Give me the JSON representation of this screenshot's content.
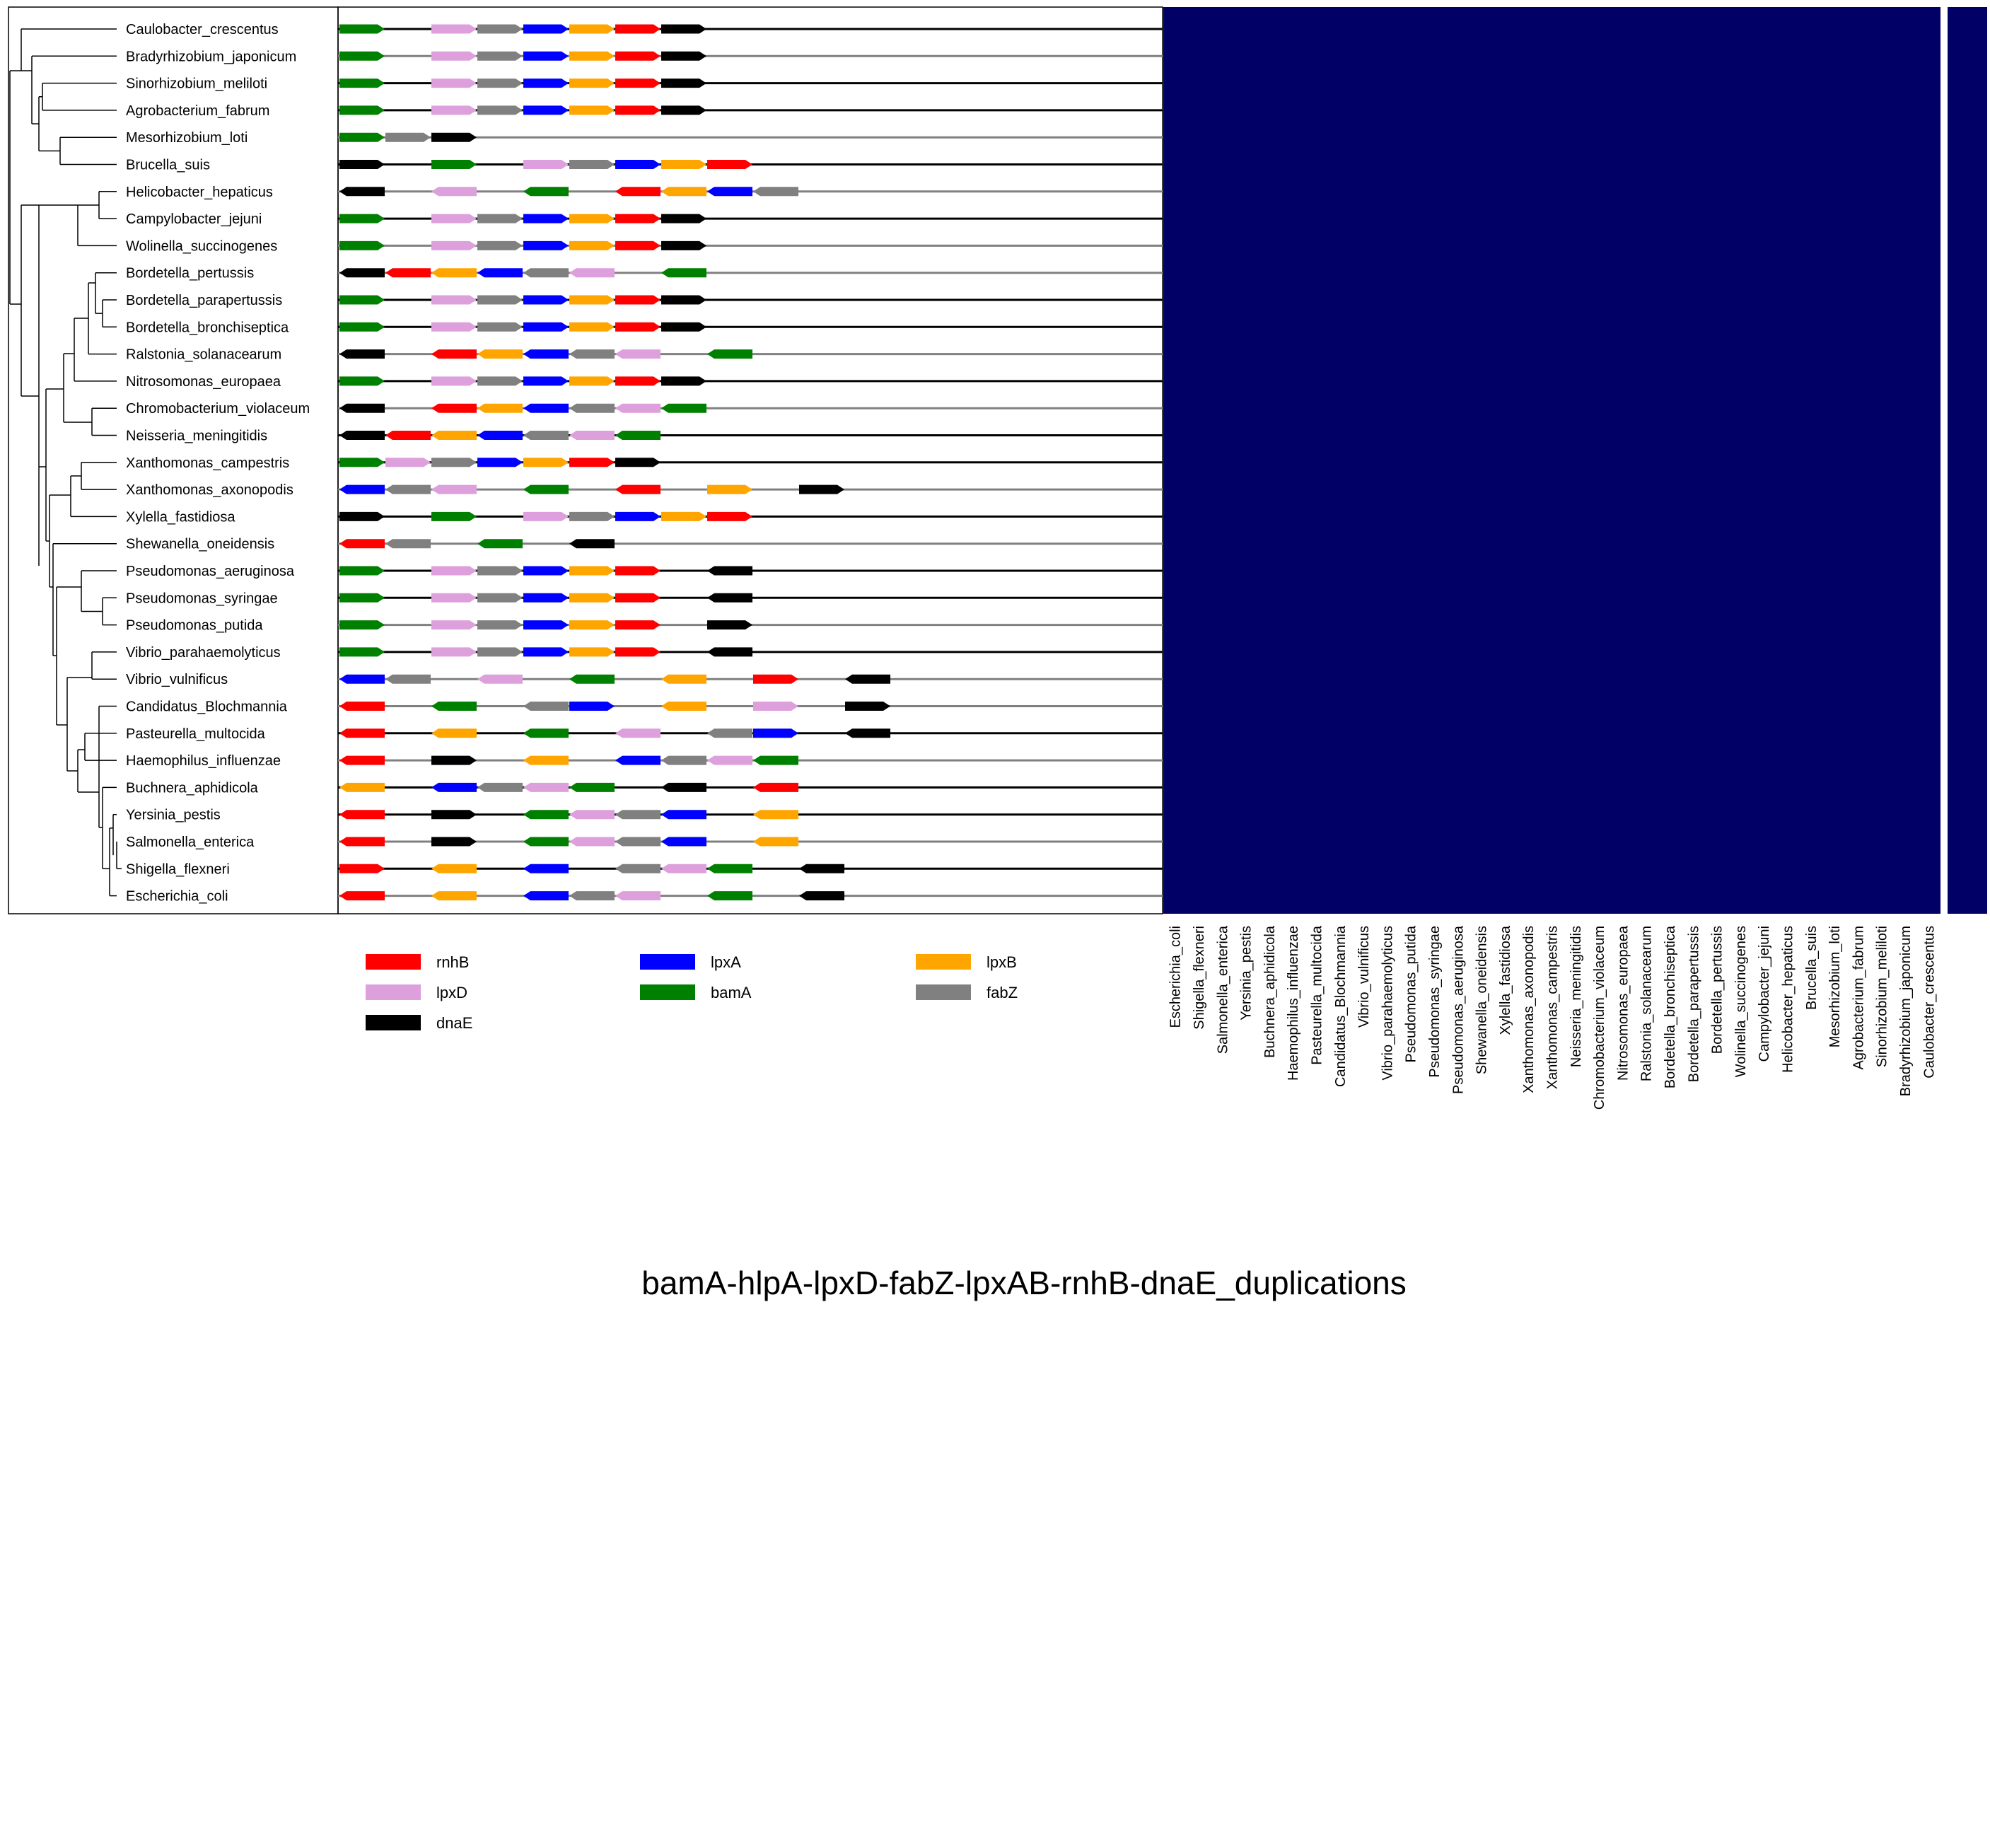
{
  "title": "bamA-hlpA-lpxD-fabZ-lpxAB-rnhB-dnaE_duplications",
  "colors": {
    "rnhB": "#ff0000",
    "lpxD": "#dda0dd",
    "dnaE": "#000000",
    "lpxA": "#0000ff",
    "bamA": "#008000",
    "lpxB": "#ffa500",
    "fabZ": "#808080",
    "heatmap": "#000066",
    "line_dark": "#000000",
    "line_grey": "#808080"
  },
  "legend": [
    {
      "gene": "rnhB",
      "label": "rnhB"
    },
    {
      "gene": "lpxA",
      "label": "lpxA"
    },
    {
      "gene": "lpxB",
      "label": "lpxB"
    },
    {
      "gene": "lpxD",
      "label": "lpxD"
    },
    {
      "gene": "bamA",
      "label": "bamA"
    },
    {
      "gene": "fabZ",
      "label": "fabZ"
    },
    {
      "gene": "dnaE",
      "label": "dnaE"
    }
  ],
  "species": [
    "Caulobacter_crescentus",
    "Bradyrhizobium_japonicum",
    "Sinorhizobium_meliloti",
    "Agrobacterium_fabrum",
    "Mesorhizobium_loti",
    "Brucella_suis",
    "Helicobacter_hepaticus",
    "Campylobacter_jejuni",
    "Wolinella_succinogenes",
    "Bordetella_pertussis",
    "Bordetella_parapertussis",
    "Bordetella_bronchiseptica",
    "Ralstonia_solanacearum",
    "Nitrosomonas_europaea",
    "Chromobacterium_violaceum",
    "Neisseria_meningitidis",
    "Xanthomonas_campestris",
    "Xanthomonas_axonopodis",
    "Xylella_fastidiosa",
    "Shewanella_oneidensis",
    "Pseudomonas_aeruginosa",
    "Pseudomonas_syringae",
    "Pseudomonas_putida",
    "Vibrio_parahaemolyticus",
    "Vibrio_vulnificus",
    "Candidatus_Blochmannia",
    "Pasteurella_multocida",
    "Haemophilus_influenzae",
    "Buchnera_aphidicola",
    "Yersinia_pestis",
    "Salmonella_enterica",
    "Shigella_flexneri",
    "Escherichia_coli"
  ],
  "heatmap_columns": [
    "Escherichia_coli",
    "Shigella_flexneri",
    "Salmonella_enterica",
    "Yersinia_pestis",
    "Buchnera_aphidicola",
    "Haemophilus_influenzae",
    "Pasteurella_multocida",
    "Candidatus_Blochmannia",
    "Vibrio_vulnificus",
    "Vibrio_parahaemolyticus",
    "Pseudomonas_putida",
    "Pseudomonas_syringae",
    "Pseudomonas_aeruginosa",
    "Shewanella_oneidensis",
    "Xylella_fastidiosa",
    "Xanthomonas_axonopodis",
    "Xanthomonas_campestris",
    "Neisseria_meningitidis",
    "Chromobacterium_violaceum",
    "Nitrosomonas_europaea",
    "Ralstonia_solanacearum",
    "Bordetella_bronchiseptica",
    "Bordetella_parapertussis",
    "Bordetella_pertussis",
    "Wolinella_succinogenes",
    "Campylobacter_jejuni",
    "Helicobacter_hepaticus",
    "Brucella_suis",
    "Mesorhizobium_loti",
    "Agrobacterium_fabrum",
    "Sinorhizobium_meliloti",
    "Bradyrhizobium_japonicum",
    "Caulobacter_crescentus"
  ],
  "tracks": [
    {
      "line": "dark",
      "genes": [
        [
          "bamA",
          0,
          1
        ],
        [
          "lpxD",
          2,
          1
        ],
        [
          "fabZ",
          3,
          1
        ],
        [
          "lpxA",
          4,
          1
        ],
        [
          "lpxB",
          5,
          1
        ],
        [
          "rnhB",
          6,
          1
        ],
        [
          "dnaE",
          7,
          1
        ]
      ]
    },
    {
      "line": "grey",
      "genes": [
        [
          "bamA",
          0,
          1
        ],
        [
          "lpxD",
          2,
          1
        ],
        [
          "fabZ",
          3,
          1
        ],
        [
          "lpxA",
          4,
          1
        ],
        [
          "lpxB",
          5,
          1
        ],
        [
          "rnhB",
          6,
          1
        ],
        [
          "dnaE",
          7,
          1
        ]
      ]
    },
    {
      "line": "dark",
      "genes": [
        [
          "bamA",
          0,
          1
        ],
        [
          "lpxD",
          2,
          1
        ],
        [
          "fabZ",
          3,
          1
        ],
        [
          "lpxA",
          4,
          1
        ],
        [
          "lpxB",
          5,
          1
        ],
        [
          "rnhB",
          6,
          1
        ],
        [
          "dnaE",
          7,
          1
        ]
      ]
    },
    {
      "line": "dark",
      "genes": [
        [
          "bamA",
          0,
          1
        ],
        [
          "lpxD",
          2,
          1
        ],
        [
          "fabZ",
          3,
          1
        ],
        [
          "lpxA",
          4,
          1
        ],
        [
          "lpxB",
          5,
          1
        ],
        [
          "rnhB",
          6,
          1
        ],
        [
          "dnaE",
          7,
          1
        ]
      ]
    },
    {
      "line": "grey",
      "genes": [
        [
          "bamA",
          0,
          1
        ],
        [
          "fabZ",
          1,
          1
        ],
        [
          "dnaE",
          2,
          1
        ]
      ]
    },
    {
      "line": "dark",
      "genes": [
        [
          "dnaE",
          0,
          1
        ],
        [
          "bamA",
          2,
          1
        ],
        [
          "lpxD",
          4,
          1
        ],
        [
          "fabZ",
          5,
          1
        ],
        [
          "lpxA",
          6,
          1
        ],
        [
          "lpxB",
          7,
          1
        ],
        [
          "rnhB",
          8,
          1
        ]
      ]
    },
    {
      "line": "grey",
      "genes": [
        [
          "dnaE",
          0,
          -1
        ],
        [
          "lpxD",
          2,
          -1
        ],
        [
          "bamA",
          4,
          -1
        ],
        [
          "rnhB",
          6,
          -1
        ],
        [
          "lpxB",
          7,
          -1
        ],
        [
          "lpxA",
          8,
          -1
        ],
        [
          "fabZ",
          9,
          -1
        ]
      ]
    },
    {
      "line": "dark",
      "genes": [
        [
          "bamA",
          0,
          1
        ],
        [
          "lpxD",
          2,
          1
        ],
        [
          "fabZ",
          3,
          1
        ],
        [
          "lpxA",
          4,
          1
        ],
        [
          "lpxB",
          5,
          1
        ],
        [
          "rnhB",
          6,
          1
        ],
        [
          "dnaE",
          7,
          1
        ]
      ]
    },
    {
      "line": "grey",
      "genes": [
        [
          "bamA",
          0,
          1
        ],
        [
          "lpxD",
          2,
          1
        ],
        [
          "fabZ",
          3,
          1
        ],
        [
          "lpxA",
          4,
          1
        ],
        [
          "lpxB",
          5,
          1
        ],
        [
          "rnhB",
          6,
          1
        ],
        [
          "dnaE",
          7,
          1
        ]
      ]
    },
    {
      "line": "grey",
      "genes": [
        [
          "dnaE",
          0,
          -1
        ],
        [
          "rnhB",
          1,
          -1
        ],
        [
          "lpxB",
          2,
          -1
        ],
        [
          "lpxA",
          3,
          -1
        ],
        [
          "fabZ",
          4,
          -1
        ],
        [
          "lpxD",
          5,
          -1
        ],
        [
          "bamA",
          7,
          -1
        ]
      ]
    },
    {
      "line": "dark",
      "genes": [
        [
          "bamA",
          0,
          1
        ],
        [
          "lpxD",
          2,
          1
        ],
        [
          "fabZ",
          3,
          1
        ],
        [
          "lpxA",
          4,
          1
        ],
        [
          "lpxB",
          5,
          1
        ],
        [
          "rnhB",
          6,
          1
        ],
        [
          "dnaE",
          7,
          1
        ]
      ]
    },
    {
      "line": "dark",
      "genes": [
        [
          "bamA",
          0,
          1
        ],
        [
          "lpxD",
          2,
          1
        ],
        [
          "fabZ",
          3,
          1
        ],
        [
          "lpxA",
          4,
          1
        ],
        [
          "lpxB",
          5,
          1
        ],
        [
          "rnhB",
          6,
          1
        ],
        [
          "dnaE",
          7,
          1
        ]
      ]
    },
    {
      "line": "grey",
      "genes": [
        [
          "dnaE",
          0,
          -1
        ],
        [
          "rnhB",
          2,
          -1
        ],
        [
          "lpxB",
          3,
          -1
        ],
        [
          "lpxA",
          4,
          -1
        ],
        [
          "fabZ",
          5,
          -1
        ],
        [
          "lpxD",
          6,
          -1
        ],
        [
          "bamA",
          8,
          -1
        ]
      ]
    },
    {
      "line": "dark",
      "genes": [
        [
          "bamA",
          0,
          1
        ],
        [
          "lpxD",
          2,
          1
        ],
        [
          "fabZ",
          3,
          1
        ],
        [
          "lpxA",
          4,
          1
        ],
        [
          "lpxB",
          5,
          1
        ],
        [
          "rnhB",
          6,
          1
        ],
        [
          "dnaE",
          7,
          1
        ]
      ]
    },
    {
      "line": "grey",
      "genes": [
        [
          "dnaE",
          0,
          -1
        ],
        [
          "rnhB",
          2,
          -1
        ],
        [
          "lpxB",
          3,
          -1
        ],
        [
          "lpxA",
          4,
          -1
        ],
        [
          "fabZ",
          5,
          -1
        ],
        [
          "lpxD",
          6,
          -1
        ],
        [
          "bamA",
          7,
          -1
        ]
      ]
    },
    {
      "line": "dark",
      "genes": [
        [
          "dnaE",
          0,
          -1
        ],
        [
          "rnhB",
          1,
          -1
        ],
        [
          "lpxB",
          2,
          -1
        ],
        [
          "lpxA",
          3,
          -1
        ],
        [
          "fabZ",
          4,
          -1
        ],
        [
          "lpxD",
          5,
          -1
        ],
        [
          "bamA",
          6,
          -1
        ]
      ]
    },
    {
      "line": "dark",
      "genes": [
        [
          "bamA",
          0,
          1
        ],
        [
          "lpxD",
          1,
          1
        ],
        [
          "fabZ",
          2,
          1
        ],
        [
          "lpxA",
          3,
          1
        ],
        [
          "lpxB",
          4,
          1
        ],
        [
          "rnhB",
          5,
          1
        ],
        [
          "dnaE",
          6,
          1
        ]
      ]
    },
    {
      "line": "grey",
      "genes": [
        [
          "lpxA",
          0,
          -1
        ],
        [
          "fabZ",
          1,
          -1
        ],
        [
          "lpxD",
          2,
          -1
        ],
        [
          "bamA",
          4,
          -1
        ],
        [
          "rnhB",
          6,
          -1
        ],
        [
          "lpxB",
          8,
          1
        ],
        [
          "dnaE",
          10,
          1
        ]
      ]
    },
    {
      "line": "dark",
      "genes": [
        [
          "dnaE",
          0,
          1
        ],
        [
          "bamA",
          2,
          1
        ],
        [
          "lpxD",
          4,
          1
        ],
        [
          "fabZ",
          5,
          1
        ],
        [
          "lpxA",
          6,
          1
        ],
        [
          "lpxB",
          7,
          1
        ],
        [
          "rnhB",
          8,
          1
        ]
      ]
    },
    {
      "line": "grey",
      "genes": [
        [
          "rnhB",
          0,
          -1
        ],
        [
          "fabZ",
          1,
          -1
        ],
        [
          "bamA",
          3,
          -1
        ],
        [
          "dnaE",
          5,
          -1
        ]
      ]
    },
    {
      "line": "dark",
      "genes": [
        [
          "bamA",
          0,
          1
        ],
        [
          "lpxD",
          2,
          1
        ],
        [
          "fabZ",
          3,
          1
        ],
        [
          "lpxA",
          4,
          1
        ],
        [
          "lpxB",
          5,
          1
        ],
        [
          "rnhB",
          6,
          1
        ],
        [
          "dnaE",
          8,
          -1
        ]
      ]
    },
    {
      "line": "dark",
      "genes": [
        [
          "bamA",
          0,
          1
        ],
        [
          "lpxD",
          2,
          1
        ],
        [
          "fabZ",
          3,
          1
        ],
        [
          "lpxA",
          4,
          1
        ],
        [
          "lpxB",
          5,
          1
        ],
        [
          "rnhB",
          6,
          1
        ],
        [
          "dnaE",
          8,
          -1
        ]
      ]
    },
    {
      "line": "grey",
      "genes": [
        [
          "bamA",
          0,
          1
        ],
        [
          "lpxD",
          2,
          1
        ],
        [
          "fabZ",
          3,
          1
        ],
        [
          "lpxA",
          4,
          1
        ],
        [
          "lpxB",
          5,
          1
        ],
        [
          "rnhB",
          6,
          1
        ],
        [
          "dnaE",
          8,
          1
        ]
      ]
    },
    {
      "line": "dark",
      "genes": [
        [
          "bamA",
          0,
          1
        ],
        [
          "lpxD",
          2,
          1
        ],
        [
          "fabZ",
          3,
          1
        ],
        [
          "lpxA",
          4,
          1
        ],
        [
          "lpxB",
          5,
          1
        ],
        [
          "rnhB",
          6,
          1
        ],
        [
          "dnaE",
          8,
          -1
        ]
      ]
    },
    {
      "line": "grey",
      "genes": [
        [
          "lpxA",
          0,
          -1
        ],
        [
          "fabZ",
          1,
          -1
        ],
        [
          "lpxD",
          3,
          -1
        ],
        [
          "bamA",
          5,
          -1
        ],
        [
          "lpxB",
          7,
          -1
        ],
        [
          "rnhB",
          9,
          1
        ],
        [
          "dnaE",
          11,
          -1
        ]
      ]
    },
    {
      "line": "grey",
      "genes": [
        [
          "rnhB",
          0,
          -1
        ],
        [
          "bamA",
          2,
          -1
        ],
        [
          "fabZ",
          4,
          -1
        ],
        [
          "lpxA",
          5,
          1
        ],
        [
          "lpxB",
          7,
          -1
        ],
        [
          "lpxD",
          9,
          1
        ],
        [
          "dnaE",
          11,
          1
        ]
      ]
    },
    {
      "line": "dark",
      "genes": [
        [
          "rnhB",
          0,
          -1
        ],
        [
          "lpxB",
          2,
          -1
        ],
        [
          "bamA",
          4,
          -1
        ],
        [
          "lpxD",
          6,
          -1
        ],
        [
          "fabZ",
          8,
          -1
        ],
        [
          "lpxA",
          9,
          1
        ],
        [
          "dnaE",
          11,
          -1
        ]
      ]
    },
    {
      "line": "grey",
      "genes": [
        [
          "rnhB",
          0,
          -1
        ],
        [
          "dnaE",
          2,
          1
        ],
        [
          "lpxB",
          4,
          -1
        ],
        [
          "lpxA",
          6,
          -1
        ],
        [
          "fabZ",
          7,
          -1
        ],
        [
          "lpxD",
          8,
          -1
        ],
        [
          "bamA",
          9,
          -1
        ]
      ]
    },
    {
      "line": "dark",
      "genes": [
        [
          "lpxB",
          0,
          -1
        ],
        [
          "lpxA",
          2,
          -1
        ],
        [
          "fabZ",
          3,
          -1
        ],
        [
          "lpxD",
          4,
          -1
        ],
        [
          "bamA",
          5,
          -1
        ],
        [
          "dnaE",
          7,
          -1
        ],
        [
          "rnhB",
          9,
          -1
        ]
      ]
    },
    {
      "line": "dark",
      "genes": [
        [
          "rnhB",
          0,
          -1
        ],
        [
          "dnaE",
          2,
          1
        ],
        [
          "bamA",
          4,
          -1
        ],
        [
          "lpxD",
          5,
          -1
        ],
        [
          "fabZ",
          6,
          -1
        ],
        [
          "lpxA",
          7,
          -1
        ],
        [
          "lpxB",
          9,
          -1
        ]
      ]
    },
    {
      "line": "grey",
      "genes": [
        [
          "rnhB",
          0,
          -1
        ],
        [
          "dnaE",
          2,
          1
        ],
        [
          "bamA",
          4,
          -1
        ],
        [
          "lpxD",
          5,
          -1
        ],
        [
          "fabZ",
          6,
          -1
        ],
        [
          "lpxA",
          7,
          -1
        ],
        [
          "lpxB",
          9,
          -1
        ]
      ]
    },
    {
      "line": "dark",
      "genes": [
        [
          "rnhB",
          0,
          1
        ],
        [
          "lpxB",
          2,
          -1
        ],
        [
          "lpxA",
          4,
          -1
        ],
        [
          "fabZ",
          6,
          -1
        ],
        [
          "lpxD",
          7,
          -1
        ],
        [
          "bamA",
          8,
          -1
        ],
        [
          "dnaE",
          10,
          -1
        ]
      ]
    },
    {
      "line": "grey",
      "genes": [
        [
          "rnhB",
          0,
          -1
        ],
        [
          "lpxB",
          2,
          -1
        ],
        [
          "lpxA",
          4,
          -1
        ],
        [
          "fabZ",
          5,
          -1
        ],
        [
          "lpxD",
          6,
          -1
        ],
        [
          "bamA",
          8,
          -1
        ],
        [
          "dnaE",
          10,
          -1
        ]
      ]
    }
  ]
}
